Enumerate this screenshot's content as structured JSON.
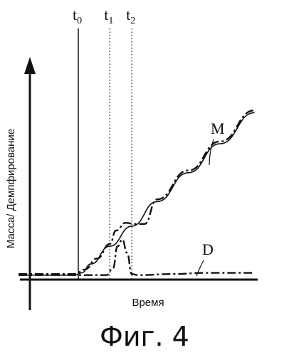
{
  "chart_data": {
    "type": "line",
    "xlabel": "Время",
    "ylabel": "Масса/ Демпфирование",
    "caption": "Фиг. 4",
    "time_markers": [
      {
        "name": "t0",
        "base": "t",
        "sub": "0",
        "x": 0,
        "style": "solid"
      },
      {
        "name": "t1",
        "base": "t",
        "sub": "1",
        "x": 1,
        "style": "dotted"
      },
      {
        "name": "t2",
        "base": "t",
        "sub": "2",
        "x": 1.7,
        "style": "dotted"
      }
    ],
    "xlim": [
      -1.9,
      5.7
    ],
    "ylim": [
      0,
      10
    ],
    "series": [
      {
        "name": "M",
        "label": "M",
        "style": "solid",
        "x": [
          -1.9,
          -0.1,
          0.1,
          0.4,
          1.0,
          1.7,
          2.5,
          3.5,
          4.5,
          5.6
        ],
        "y": [
          0.2,
          0.2,
          0.3,
          0.7,
          1.5,
          2.4,
          3.5,
          4.8,
          6.1,
          7.5
        ]
      },
      {
        "name": "M (dash-dot)",
        "label": "",
        "style": "dashdot",
        "x": [
          -1.9,
          -0.1,
          0.2,
          0.6,
          1.0,
          1.2,
          1.5,
          1.8,
          2.1,
          2.5,
          3.5,
          4.5,
          5.6
        ],
        "y": [
          0.25,
          0.25,
          0.45,
          0.95,
          1.6,
          2.2,
          2.55,
          2.5,
          2.5,
          3.6,
          4.9,
          6.2,
          7.6
        ]
      },
      {
        "name": "D",
        "label": "D",
        "style": "dashdot",
        "x": [
          -1.9,
          0.9,
          1.1,
          1.25,
          1.4,
          1.55,
          1.7,
          1.9,
          3.0,
          4.0,
          5.6
        ],
        "y": [
          0.2,
          0.2,
          0.5,
          1.5,
          1.8,
          1.2,
          0.25,
          0.2,
          0.25,
          0.3,
          0.3
        ]
      }
    ],
    "labels": [
      {
        "text": "M",
        "series": "M"
      },
      {
        "text": "D",
        "series": "D"
      }
    ]
  }
}
